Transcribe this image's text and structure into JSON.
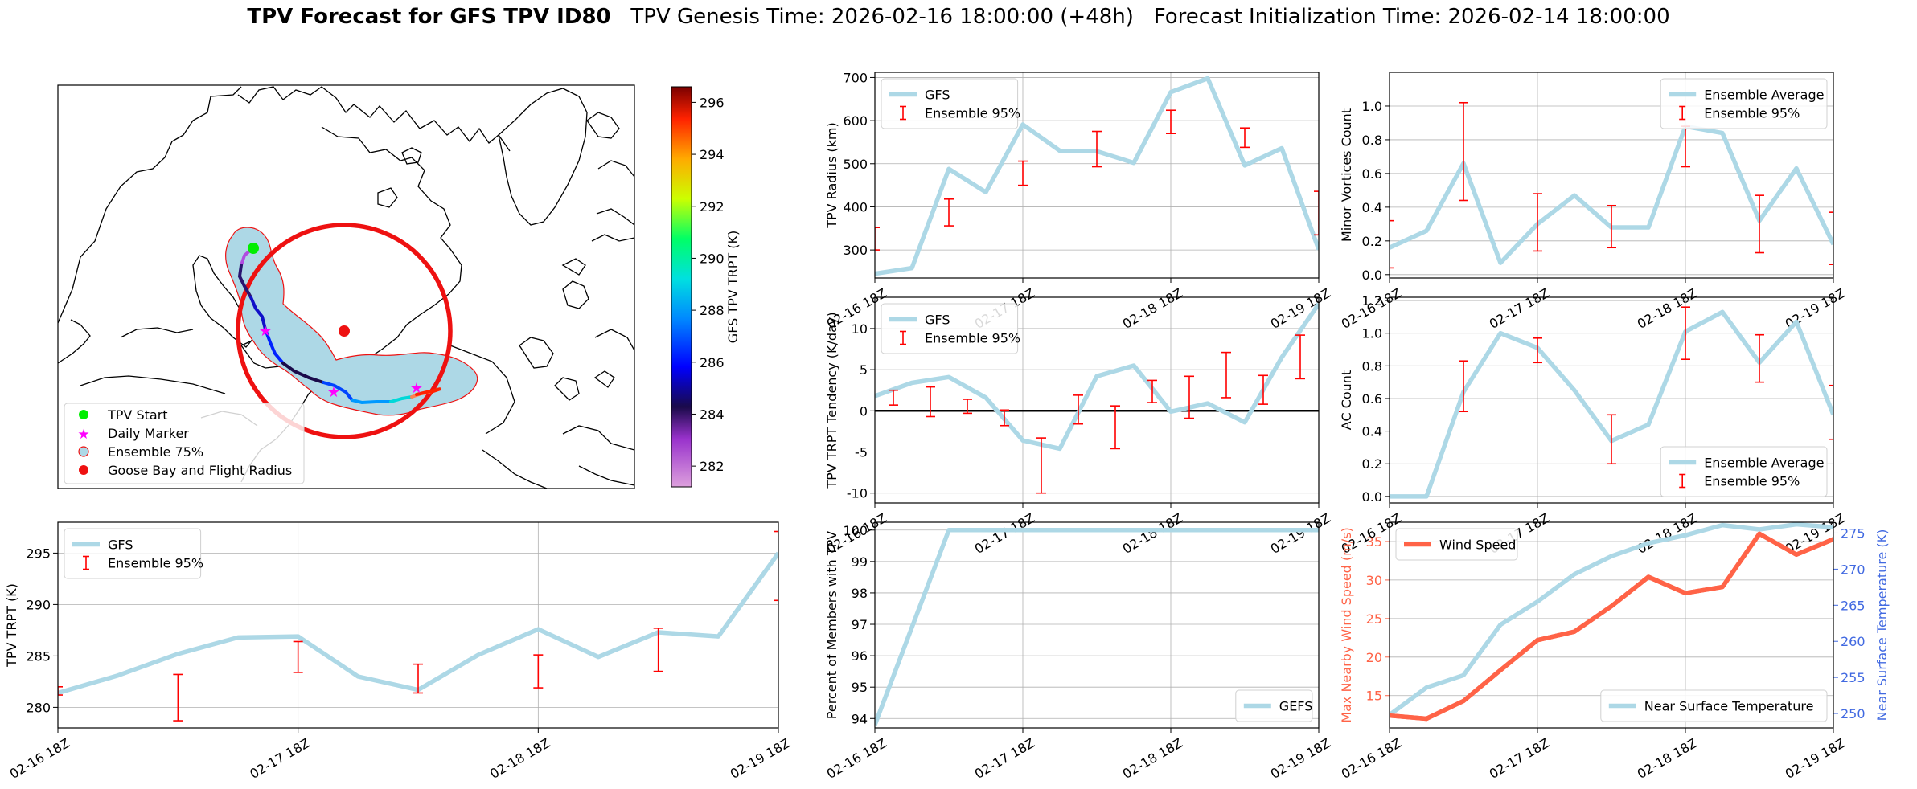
{
  "title": {
    "main": "TPV Forecast for GFS TPV ID80",
    "genesis": "TPV Genesis Time: 2026-02-16 18:00:00 (+48h)",
    "init": "Forecast Initialization Time: 2026-02-14 18:00:00"
  },
  "map": {
    "legend": [
      "TPV Start",
      "Daily Marker",
      "Ensemble 75%",
      "Goose Bay and Flight Radius"
    ],
    "colorbar": {
      "label": "GFS TPV TRPT (K)",
      "ticks": [
        282,
        284,
        286,
        288,
        290,
        292,
        294,
        296
      ],
      "min": 281.2,
      "max": 296.6
    },
    "colors": {
      "start": "#00ee00",
      "daily": "#ff00ff",
      "ensemble": "#add8e6",
      "goose": "#ee1111"
    }
  },
  "time_ticks": [
    "02-16 18Z",
    "02-17 18Z",
    "02-18 18Z",
    "02-19 18Z"
  ],
  "colors": {
    "line": "#add8e6",
    "err": "#ff0000",
    "wind": "#ff6347",
    "temp_axis": "#4169e1"
  },
  "chart_data": [
    {
      "id": "radius",
      "type": "line",
      "ylabel": "TPV Radius (km)",
      "ylim": [
        235,
        712
      ],
      "yticks": [
        300,
        400,
        500,
        600,
        700
      ],
      "legend": [
        "GFS",
        "Ensemble 95%"
      ],
      "legend_pos": "top-left",
      "x": [
        0,
        6,
        12,
        18,
        24,
        30,
        36,
        42,
        48,
        54,
        60,
        66,
        72
      ],
      "values": [
        245,
        258,
        488,
        434,
        591,
        530,
        529,
        502,
        666,
        698,
        496,
        536,
        301
      ],
      "ensemble": [
        {
          "x": 0,
          "low": 300,
          "high": 352
        },
        {
          "x": 12,
          "low": 356,
          "high": 418
        },
        {
          "x": 24,
          "low": 450,
          "high": 506
        },
        {
          "x": 36,
          "low": 493,
          "high": 575
        },
        {
          "x": 48,
          "low": 570,
          "high": 624
        },
        {
          "x": 60,
          "low": 538,
          "high": 583
        },
        {
          "x": 72,
          "low": 335,
          "high": 436
        }
      ]
    },
    {
      "id": "minor",
      "type": "line",
      "ylabel": "Minor Vortices Count",
      "ylim": [
        -0.02,
        1.2
      ],
      "yticks": [
        "0.0",
        "0.2",
        "0.4",
        "0.6",
        "0.8",
        "1.0"
      ],
      "legend": [
        "Ensemble Average",
        "Ensemble 95%"
      ],
      "legend_pos": "top-right",
      "x": [
        0,
        6,
        12,
        18,
        24,
        30,
        36,
        42,
        48,
        54,
        60,
        66,
        72
      ],
      "values": [
        0.16,
        0.26,
        0.66,
        0.07,
        0.3,
        0.47,
        0.28,
        0.28,
        0.88,
        0.84,
        0.32,
        0.63,
        0.18
      ],
      "ensemble": [
        {
          "x": 0,
          "low": 0.04,
          "high": 0.32
        },
        {
          "x": 12,
          "low": 0.44,
          "high": 1.02
        },
        {
          "x": 24,
          "low": 0.14,
          "high": 0.48
        },
        {
          "x": 36,
          "low": 0.16,
          "high": 0.41
        },
        {
          "x": 48,
          "low": 0.64,
          "high": 0.88
        },
        {
          "x": 60,
          "low": 0.13,
          "high": 0.47
        },
        {
          "x": 72,
          "low": 0.06,
          "high": 0.37
        }
      ]
    },
    {
      "id": "tendency",
      "type": "line",
      "ylabel": "TPV TRPT Tendency (K/day)",
      "ylim": [
        -11.2,
        13.8
      ],
      "yticks": [
        -10,
        -5,
        0,
        5,
        10
      ],
      "zero_line": true,
      "legend": [
        "GFS",
        "Ensemble 95%"
      ],
      "legend_pos": "top-left",
      "x": [
        0,
        6,
        12,
        18,
        24,
        30,
        36,
        42,
        48,
        54,
        60,
        66,
        72
      ],
      "values": [
        1.8,
        3.4,
        4.1,
        1.6,
        -3.6,
        -4.6,
        4.2,
        5.5,
        -0.1,
        0.9,
        -1.4,
        6.5,
        13.0
      ],
      "ensemble": [
        {
          "x": 3,
          "low": 0.7,
          "high": 2.5
        },
        {
          "x": 9,
          "low": -0.7,
          "high": 2.9
        },
        {
          "x": 15,
          "low": -0.3,
          "high": 1.4
        },
        {
          "x": 21,
          "low": -1.8,
          "high": 0.1
        },
        {
          "x": 27,
          "low": -10.0,
          "high": -3.3
        },
        {
          "x": 33,
          "low": -1.6,
          "high": 1.9
        },
        {
          "x": 39,
          "low": -4.6,
          "high": 0.6
        },
        {
          "x": 45,
          "low": 1.0,
          "high": 3.7
        },
        {
          "x": 51,
          "low": -0.9,
          "high": 4.2
        },
        {
          "x": 57,
          "low": 1.6,
          "high": 7.1
        },
        {
          "x": 63,
          "low": 0.8,
          "high": 4.3
        },
        {
          "x": 69,
          "low": 3.9,
          "high": 9.2
        }
      ]
    },
    {
      "id": "ac",
      "type": "line",
      "ylabel": "AC Count",
      "ylim": [
        -0.04,
        1.22
      ],
      "yticks": [
        "0.0",
        "0.2",
        "0.4",
        "0.6",
        "0.8",
        "1.0",
        "1.2"
      ],
      "legend": [
        "Ensemble Average",
        "Ensemble 95%"
      ],
      "legend_pos": "bottom-right",
      "x": [
        0,
        6,
        12,
        18,
        24,
        30,
        36,
        42,
        48,
        54,
        60,
        66,
        72
      ],
      "values": [
        0.0,
        0.0,
        0.64,
        1.0,
        0.91,
        0.65,
        0.34,
        0.44,
        1.01,
        1.13,
        0.82,
        1.07,
        0.5
      ],
      "ensemble": [
        {
          "x": 12,
          "low": 0.52,
          "high": 0.83
        },
        {
          "x": 24,
          "low": 0.82,
          "high": 0.97
        },
        {
          "x": 36,
          "low": 0.2,
          "high": 0.5
        },
        {
          "x": 48,
          "low": 0.84,
          "high": 1.16
        },
        {
          "x": 60,
          "low": 0.7,
          "high": 0.99
        },
        {
          "x": 72,
          "low": 0.35,
          "high": 0.68
        }
      ]
    },
    {
      "id": "trpt",
      "type": "line",
      "ylabel": "TPV TRPT (K)",
      "ylim": [
        278.0,
        298.0
      ],
      "yticks": [
        280,
        285,
        290,
        295
      ],
      "legend": [
        "GFS",
        "Ensemble 95%"
      ],
      "legend_pos": "top-left",
      "x": [
        0,
        6,
        12,
        18,
        24,
        30,
        36,
        42,
        48,
        54,
        60,
        66,
        72
      ],
      "values": [
        281.4,
        283.1,
        285.2,
        286.8,
        286.9,
        283.0,
        281.7,
        285.1,
        287.6,
        284.9,
        287.3,
        286.9,
        295.0
      ],
      "ensemble": [
        {
          "x": 0,
          "low": 281.2,
          "high": 282.0
        },
        {
          "x": 12,
          "low": 278.7,
          "high": 283.2
        },
        {
          "x": 24,
          "low": 283.4,
          "high": 286.4
        },
        {
          "x": 36,
          "low": 281.4,
          "high": 284.2
        },
        {
          "x": 48,
          "low": 281.9,
          "high": 285.1
        },
        {
          "x": 60,
          "low": 283.5,
          "high": 287.7
        },
        {
          "x": 72,
          "low": 290.4,
          "high": 297.1
        }
      ]
    },
    {
      "id": "percent",
      "type": "line",
      "ylabel": "Percent of Members with TPV",
      "ylim": [
        93.7,
        100.25
      ],
      "yticks": [
        94,
        95,
        96,
        97,
        98,
        99,
        100
      ],
      "legend": [
        "GEFS"
      ],
      "legend_pos": "bottom-right",
      "x": [
        0,
        12,
        24,
        36,
        48,
        60,
        72
      ],
      "values": [
        93.8,
        100,
        100,
        100,
        100,
        100,
        100
      ],
      "ensemble": []
    },
    {
      "id": "wind",
      "type": "line",
      "ylabel": "Max Nearby Wind Speed (m/s)",
      "ylim": [
        10.8,
        37.5
      ],
      "yticks": [
        15,
        20,
        25,
        30,
        35
      ],
      "legend": [
        "Wind Speed"
      ],
      "legend_pos": "top-left",
      "x": [
        0,
        6,
        12,
        18,
        24,
        30,
        36,
        42,
        48,
        54,
        60,
        66,
        72
      ],
      "values": [
        12.4,
        12.0,
        14.3,
        18.3,
        22.2,
        23.3,
        26.6,
        30.4,
        28.3,
        29.1,
        36.0,
        33.3,
        35.3
      ],
      "ensemble": [],
      "secondary": {
        "ylabel": "Near Surface Temperature (K)",
        "ylim": [
          248.0,
          276.5
        ],
        "yticks": [
          250,
          255,
          260,
          265,
          270,
          275
        ],
        "legend": [
          "Near Surface Temperature"
        ],
        "legend_pos": "bottom-right",
        "values": [
          249.8,
          253.6,
          255.3,
          262.3,
          265.5,
          269.3,
          271.8,
          273.6,
          274.7,
          276.1,
          275.5,
          276.2,
          275.8
        ]
      }
    }
  ]
}
